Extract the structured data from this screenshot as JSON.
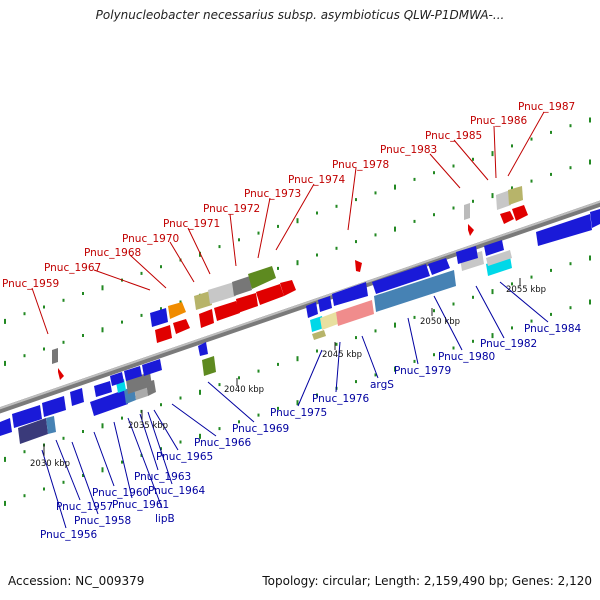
{
  "title": "Polynucleobacter necessarius subsp. asymbioticus QLW-P1DMWA-...",
  "accession": "Accession: NC_009379",
  "stats": "Topology: circular; Length: 2,159,490 bp; Genes: 2,120",
  "colors": {
    "forward_label": "#c00000",
    "reverse_label": "#0000a0",
    "backbone": "#888888",
    "tick": "#228822"
  },
  "scale_ticks": [
    {
      "label": "2030 kbp",
      "pos": 2030
    },
    {
      "label": "2035 kbp",
      "pos": 2035
    },
    {
      "label": "2040 kbp",
      "pos": 2040
    },
    {
      "label": "2045 kbp",
      "pos": 2045
    },
    {
      "label": "2050 kbp",
      "pos": 2050
    },
    {
      "label": "2055 kbp",
      "pos": 2055
    }
  ],
  "labels_forward": [
    "Pnuc_1959",
    "Pnuc_1967",
    "Pnuc_1968",
    "Pnuc_1970",
    "Pnuc_1971",
    "Pnuc_1972",
    "Pnuc_1973",
    "Pnuc_1974",
    "Pnuc_1978",
    "Pnuc_1983",
    "Pnuc_1985",
    "Pnuc_1986",
    "Pnuc_1987"
  ],
  "labels_reverse": [
    "Pnuc_1956",
    "Pnuc_1957",
    "Pnuc_1958",
    "Pnuc_1960",
    "Pnuc_1961",
    "lipB",
    "Pnuc_1963",
    "Pnuc_1964",
    "Pnuc_1965",
    "Pnuc_1966",
    "Pnuc_1969",
    "Pnuc_1975",
    "Pnuc_1976",
    "argS",
    "Pnuc_1979",
    "Pnuc_1980",
    "Pnuc_1982",
    "Pnuc_1984"
  ]
}
